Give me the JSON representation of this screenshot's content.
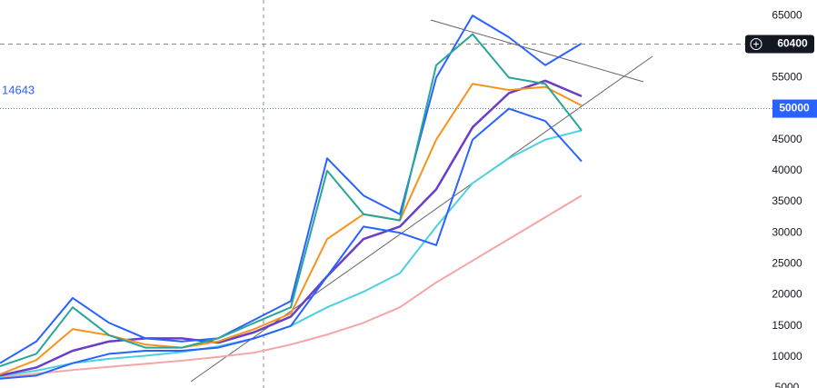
{
  "chart_data": {
    "type": "line",
    "x": [
      0,
      40,
      80,
      120,
      160,
      200,
      240,
      280,
      320,
      360,
      400,
      440,
      480,
      520,
      560,
      600,
      640
    ],
    "xlim": [
      0,
      640
    ],
    "ylim": [
      5000,
      67500
    ],
    "yticks": [
      65000,
      55000,
      45000,
      40000,
      35000,
      30000,
      25000,
      20000,
      15000,
      10000,
      5000
    ],
    "crosshair_price": 60400,
    "last_price": 50000,
    "left_label": 14643,
    "series": [
      {
        "color": "#f4a6a6",
        "values": [
          6700,
          7300,
          7900,
          8400,
          8900,
          9400,
          10000,
          10700,
          12000,
          13600,
          15500,
          18000,
          22000,
          25500,
          29000,
          32500,
          36000
        ]
      },
      {
        "color": "#4dd0e1",
        "values": [
          6900,
          7800,
          9000,
          9700,
          10200,
          10800,
          11700,
          13000,
          15000,
          18000,
          20500,
          23500,
          31000,
          38000,
          42000,
          45000,
          46500
        ]
      },
      {
        "color": "#6a3dc9",
        "values": [
          7000,
          8300,
          11000,
          12500,
          13000,
          13000,
          12300,
          14000,
          16500,
          23000,
          29000,
          31000,
          37000,
          47000,
          52500,
          54500,
          52000
        ]
      },
      {
        "color": "#f7931a",
        "values": [
          7200,
          9500,
          14500,
          13500,
          12000,
          11500,
          12500,
          14500,
          17000,
          29000,
          33000,
          32000,
          45000,
          54000,
          53000,
          53500,
          50500
        ]
      },
      {
        "color": "#2962ff",
        "values": [
          9000,
          12500,
          19500,
          15500,
          13000,
          12500,
          13000,
          16000,
          19000,
          42000,
          36000,
          33000,
          55000,
          65000,
          61500,
          57000,
          60500
        ]
      },
      {
        "color": "#2962ff",
        "values": [
          6500,
          7000,
          9000,
          10500,
          11000,
          11000,
          11500,
          13000,
          15000,
          23000,
          31000,
          30000,
          28000,
          45000,
          50000,
          48000,
          41500
        ]
      },
      {
        "color": "#26a69a",
        "values": [
          8500,
          10500,
          18000,
          13500,
          11500,
          11500,
          13000,
          15500,
          18000,
          40000,
          33000,
          32000,
          57000,
          62000,
          55000,
          54000,
          46500
        ]
      }
    ]
  }
}
